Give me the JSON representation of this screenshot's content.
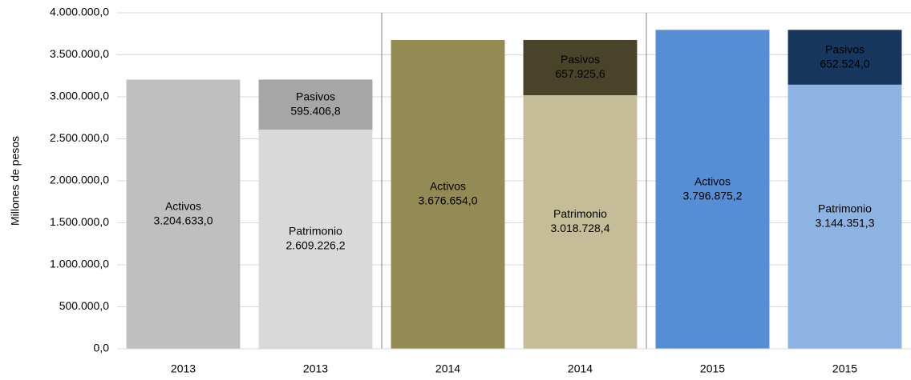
{
  "chart_data": {
    "type": "stacked_bar",
    "y_label": "Millones de pesos",
    "categories": [
      "2013",
      "2013",
      "2014",
      "2014",
      "2015",
      "2015"
    ],
    "series": [
      {
        "name": "Activos",
        "colors": [
          "#bfbfbf",
          null,
          "#948a54",
          null,
          "#558ed5",
          null
        ],
        "label_color": "#000000",
        "values": [
          3204633.0,
          null,
          3676654.0,
          null,
          3796875.2,
          null
        ],
        "value_labels": [
          "3.204.633,0",
          null,
          "3.676.654,0",
          null,
          "3.796.875,2",
          null
        ]
      },
      {
        "name": "Patrimonio",
        "colors": [
          null,
          "#d9d9d9",
          null,
          "#c4bd97",
          null,
          "#8db3e2"
        ],
        "label_color": "#000000",
        "values": [
          null,
          2609226.2,
          null,
          3018728.4,
          null,
          3144351.3
        ],
        "value_labels": [
          null,
          "2.609.226,2",
          null,
          "3.018.728,4",
          null,
          "3.144.351,3"
        ]
      },
      {
        "name": "Pasivos",
        "colors": [
          null,
          "#a6a6a6",
          null,
          "#494429",
          null,
          "#17375e"
        ],
        "label_color": "#ffffff",
        "values": [
          null,
          595406.8,
          null,
          657925.6,
          null,
          652524.0
        ],
        "value_labels": [
          null,
          "595.406,8",
          null,
          "657.925,6",
          null,
          "652.524,0"
        ]
      }
    ],
    "ylim": [
      0,
      4000000
    ],
    "yticks": [
      {
        "value": 0,
        "label": "0,0"
      },
      {
        "value": 500000,
        "label": "500.000,0"
      },
      {
        "value": 1000000,
        "label": "1.000.000,0"
      },
      {
        "value": 1500000,
        "label": "1.500.000,0"
      },
      {
        "value": 2000000,
        "label": "2.000.000,0"
      },
      {
        "value": 2500000,
        "label": "2.500.000,0"
      },
      {
        "value": 3000000,
        "label": "3.000.000,0"
      },
      {
        "value": 3500000,
        "label": "3.500.000,0"
      },
      {
        "value": 4000000,
        "label": "4.000.000,0"
      }
    ],
    "grid": true
  }
}
